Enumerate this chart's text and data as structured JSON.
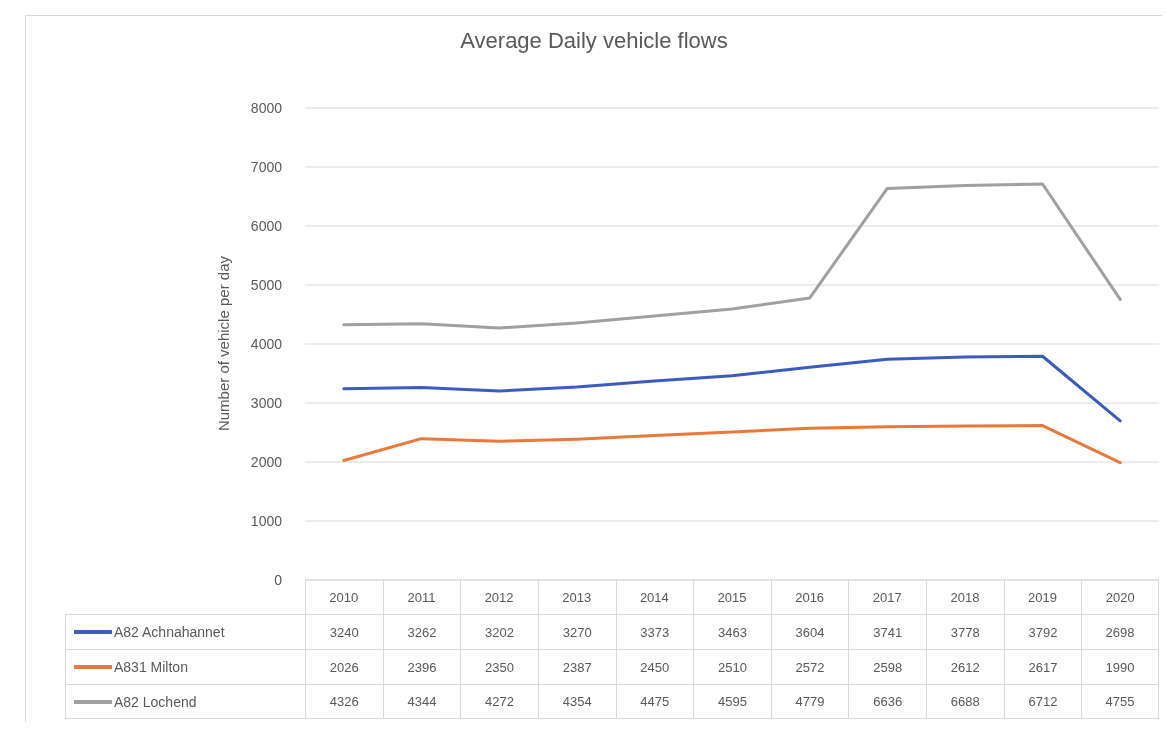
{
  "chart_data": {
    "type": "line",
    "title": "Average Daily vehicle flows",
    "ylabel": "Number of vehicle per day",
    "categories": [
      "2010",
      "2011",
      "2012",
      "2013",
      "2014",
      "2015",
      "2016",
      "2017",
      "2018",
      "2019",
      "2020"
    ],
    "series": [
      {
        "name": "A82 Achnahannet",
        "color": "#3d5bbd",
        "values": [
          3240,
          3262,
          3202,
          3270,
          3373,
          3463,
          3604,
          3741,
          3778,
          3792,
          2698
        ]
      },
      {
        "name": "A831 Milton",
        "color": "#e8793a",
        "values": [
          2026,
          2396,
          2350,
          2387,
          2450,
          2510,
          2572,
          2598,
          2612,
          2617,
          1990
        ]
      },
      {
        "name": "A82 Lochend",
        "color": "#a0a0a0",
        "values": [
          4326,
          4344,
          4272,
          4354,
          4475,
          4595,
          4779,
          6636,
          6688,
          6712,
          4755
        ]
      }
    ],
    "ylim": [
      0,
      8000
    ],
    "yticks": [
      0,
      1000,
      2000,
      3000,
      4000,
      5000,
      6000,
      7000,
      8000
    ],
    "grid": "y",
    "legend": "bottom",
    "data_labels": true
  }
}
